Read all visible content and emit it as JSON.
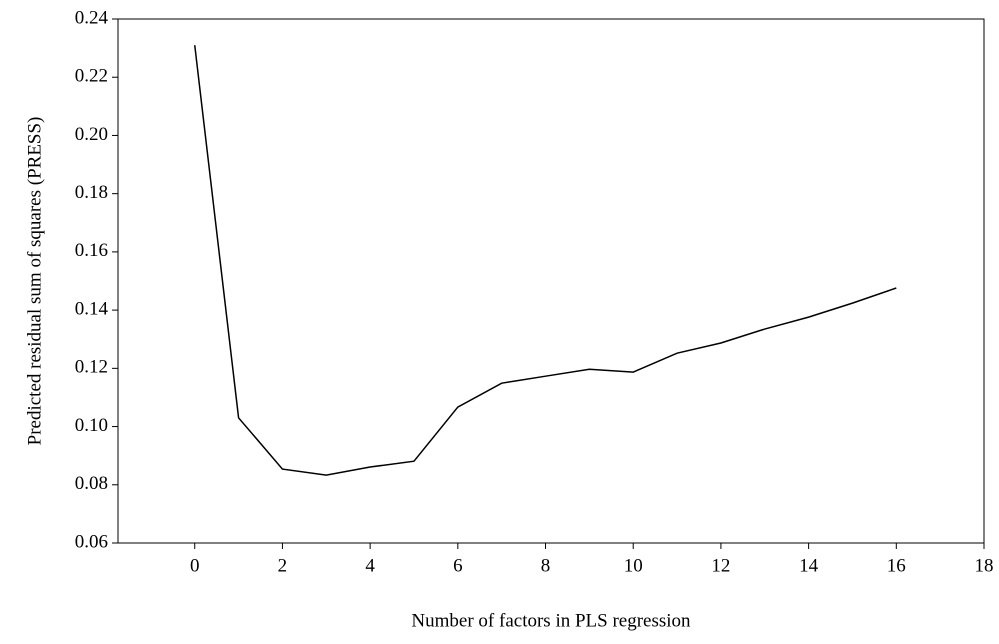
{
  "chart_data": {
    "type": "line",
    "x_label": "Number of factors in PLS regression",
    "y_label": "Predicted residual sum of squares (PRESS)",
    "series": [
      {
        "color": "#000000",
        "x": [
          0,
          1,
          2,
          3,
          4,
          5,
          6,
          7,
          8,
          9,
          10,
          11,
          12,
          13,
          14,
          15,
          16
        ],
        "values": [
          0.231,
          0.103,
          0.0854,
          0.0833,
          0.0861,
          0.0881,
          0.1067,
          0.1149,
          0.1173,
          0.1197,
          0.1187,
          0.1252,
          0.1287,
          0.1335,
          0.1376,
          0.1424,
          0.1476
        ]
      }
    ],
    "xlim": [
      -1.75,
      18
    ],
    "xticks": [
      0,
      2,
      4,
      6,
      8,
      10,
      12,
      14,
      16,
      18
    ],
    "ylim": [
      0.06,
      0.24
    ],
    "yticks": [
      {
        "value": 0.06,
        "label": "0.06"
      },
      {
        "value": 0.08,
        "label": "0.08"
      },
      {
        "value": 0.1,
        "label": "0.10"
      },
      {
        "value": 0.12,
        "label": "0.12"
      },
      {
        "value": 0.14,
        "label": "0.14"
      },
      {
        "value": 0.16,
        "label": "0.16"
      },
      {
        "value": 0.18,
        "label": "0.18"
      },
      {
        "value": 0.2,
        "label": "0.20"
      },
      {
        "value": 0.22,
        "label": "0.22"
      },
      {
        "value": 0.24,
        "label": "0.24"
      }
    ]
  }
}
